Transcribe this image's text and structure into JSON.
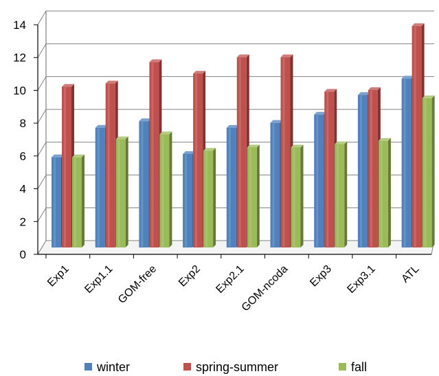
{
  "chart_data": {
    "type": "bar",
    "categories": [
      "Exp1",
      "Exp1.1",
      "GOM-free",
      "Exp2",
      "Exp2.1",
      "GOM-ncoda",
      "Exp3",
      "Exp3.1",
      "ATL"
    ],
    "series": [
      {
        "name": "winter",
        "color": "#4f81bd",
        "values": [
          5.5,
          7.3,
          7.7,
          5.7,
          7.3,
          7.6,
          8.1,
          9.3,
          10.3
        ]
      },
      {
        "name": "spring-summer",
        "color": "#c0504d",
        "values": [
          9.8,
          10.0,
          11.3,
          10.6,
          11.6,
          11.6,
          9.5,
          9.6,
          13.5
        ]
      },
      {
        "name": "fall",
        "color": "#9bbb59",
        "values": [
          5.5,
          6.6,
          6.9,
          5.9,
          6.1,
          6.1,
          6.3,
          6.5,
          9.1
        ]
      }
    ],
    "yticks": [
      "0",
      "2",
      "4",
      "6",
      "8",
      "10",
      "12",
      "14"
    ],
    "ylim": [
      0,
      14
    ],
    "grid": true,
    "legend_position": "bottom"
  }
}
